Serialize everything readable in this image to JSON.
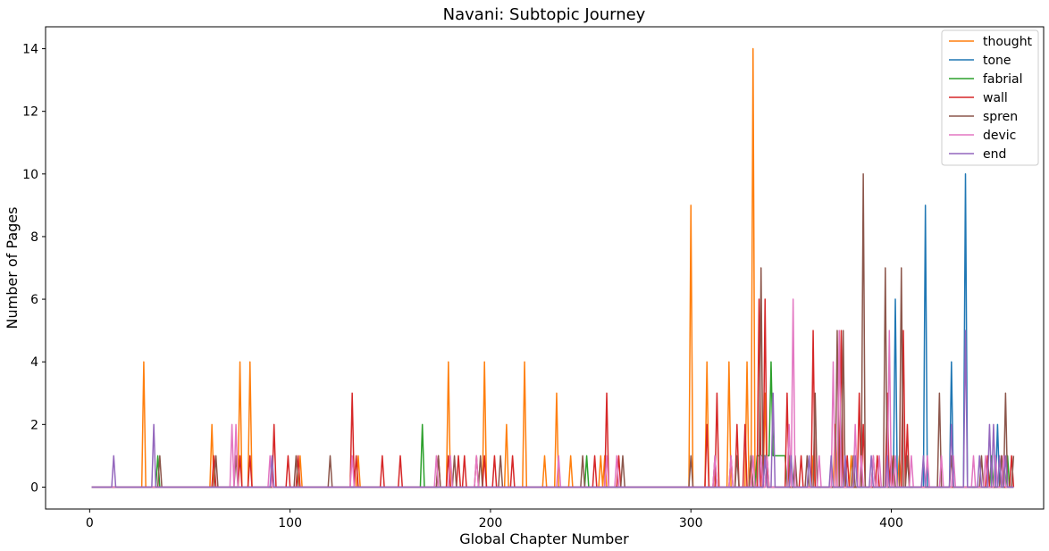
{
  "chart_data": {
    "type": "line",
    "title": "Navani: Subtopic Journey",
    "xlabel": "Global Chapter Number",
    "ylabel": "Number of Pages",
    "xlim": [
      -22,
      476
    ],
    "ylim": [
      -0.7,
      14.7
    ],
    "xticks": [
      0,
      100,
      200,
      300,
      400
    ],
    "yticks": [
      0,
      2,
      4,
      6,
      8,
      10,
      12,
      14
    ],
    "x_range": [
      1,
      461
    ],
    "grid": false,
    "legend_position": "top-right",
    "series": [
      {
        "name": "thought",
        "color": "#ff7f0e",
        "points": [
          [
            27,
            4
          ],
          [
            61,
            2
          ],
          [
            75,
            4
          ],
          [
            80,
            4
          ],
          [
            105,
            1
          ],
          [
            134,
            1
          ],
          [
            179,
            4
          ],
          [
            197,
            4
          ],
          [
            208,
            2
          ],
          [
            217,
            4
          ],
          [
            227,
            1
          ],
          [
            233,
            3
          ],
          [
            240,
            1
          ],
          [
            255,
            1
          ],
          [
            257,
            1
          ],
          [
            300,
            9
          ],
          [
            308,
            4
          ],
          [
            319,
            4
          ],
          [
            328,
            4
          ],
          [
            331,
            14
          ],
          [
            337,
            3
          ],
          [
            361,
            1
          ],
          [
            372,
            2
          ],
          [
            380,
            1
          ],
          [
            398,
            2
          ],
          [
            404,
            1
          ]
        ]
      },
      {
        "name": "tone",
        "color": "#1f77b4",
        "points": [
          [
            337,
            1
          ],
          [
            402,
            6
          ],
          [
            417,
            9
          ],
          [
            430,
            4
          ],
          [
            437,
            10
          ],
          [
            453,
            2
          ]
        ]
      },
      {
        "name": "fabrial",
        "color": "#2ca02c",
        "points": [
          [
            34,
            1
          ],
          [
            166,
            2
          ],
          [
            248,
            1
          ],
          [
            333,
            1
          ],
          [
            334,
            1
          ],
          [
            335,
            1
          ],
          [
            336,
            1
          ],
          [
            337,
            1
          ],
          [
            338,
            1
          ],
          [
            339,
            1
          ],
          [
            340,
            4
          ],
          [
            341,
            1
          ],
          [
            342,
            1
          ],
          [
            343,
            1
          ],
          [
            344,
            1
          ],
          [
            345,
            1
          ],
          [
            346,
            1
          ],
          [
            347,
            1
          ],
          [
            349,
            1
          ],
          [
            450,
            1
          ],
          [
            458,
            1
          ]
        ]
      },
      {
        "name": "wall",
        "color": "#d62728",
        "points": [
          [
            62,
            1
          ],
          [
            75,
            1
          ],
          [
            80,
            1
          ],
          [
            92,
            2
          ],
          [
            99,
            1
          ],
          [
            104,
            1
          ],
          [
            131,
            3
          ],
          [
            133,
            1
          ],
          [
            146,
            1
          ],
          [
            155,
            1
          ],
          [
            174,
            1
          ],
          [
            179,
            1
          ],
          [
            184,
            1
          ],
          [
            187,
            1
          ],
          [
            193,
            1
          ],
          [
            197,
            1
          ],
          [
            202,
            1
          ],
          [
            211,
            1
          ],
          [
            252,
            1
          ],
          [
            258,
            3
          ],
          [
            264,
            1
          ],
          [
            308,
            2
          ],
          [
            313,
            3
          ],
          [
            320,
            1
          ],
          [
            323,
            2
          ],
          [
            327,
            2
          ],
          [
            330,
            1
          ],
          [
            334,
            6
          ],
          [
            337,
            6
          ],
          [
            348,
            3
          ],
          [
            355,
            1
          ],
          [
            361,
            5
          ],
          [
            375,
            5
          ],
          [
            378,
            1
          ],
          [
            384,
            3
          ],
          [
            386,
            2
          ],
          [
            393,
            1
          ],
          [
            398,
            3
          ],
          [
            400,
            1
          ],
          [
            406,
            5
          ],
          [
            408,
            2
          ],
          [
            448,
            1
          ],
          [
            455,
            1
          ],
          [
            460,
            1
          ]
        ]
      },
      {
        "name": "spren",
        "color": "#8c564b",
        "points": [
          [
            35,
            1
          ],
          [
            63,
            1
          ],
          [
            73,
            1
          ],
          [
            103,
            1
          ],
          [
            120,
            1
          ],
          [
            174,
            1
          ],
          [
            182,
            1
          ],
          [
            195,
            1
          ],
          [
            205,
            1
          ],
          [
            246,
            1
          ],
          [
            266,
            1
          ],
          [
            300,
            1
          ],
          [
            312,
            1
          ],
          [
            323,
            1
          ],
          [
            330,
            1
          ],
          [
            335,
            7
          ],
          [
            338,
            1
          ],
          [
            352,
            1
          ],
          [
            358,
            1
          ],
          [
            362,
            3
          ],
          [
            373,
            5
          ],
          [
            376,
            5
          ],
          [
            381,
            1
          ],
          [
            386,
            10
          ],
          [
            391,
            1
          ],
          [
            397,
            7
          ],
          [
            401,
            1
          ],
          [
            405,
            7
          ],
          [
            408,
            1
          ],
          [
            424,
            3
          ],
          [
            430,
            1
          ],
          [
            445,
            1
          ],
          [
            455,
            1
          ],
          [
            457,
            3
          ],
          [
            461,
            1
          ]
        ]
      },
      {
        "name": "devic",
        "color": "#e377c2",
        "points": [
          [
            71,
            2
          ],
          [
            73,
            2
          ],
          [
            90,
            1
          ],
          [
            131,
            1
          ],
          [
            173,
            1
          ],
          [
            180,
            1
          ],
          [
            193,
            1
          ],
          [
            234,
            1
          ],
          [
            258,
            1
          ],
          [
            263,
            1
          ],
          [
            312,
            1
          ],
          [
            320,
            1
          ],
          [
            331,
            1
          ],
          [
            335,
            1
          ],
          [
            338,
            1
          ],
          [
            349,
            2
          ],
          [
            351,
            6
          ],
          [
            364,
            1
          ],
          [
            371,
            4
          ],
          [
            374,
            5
          ],
          [
            382,
            2
          ],
          [
            385,
            1
          ],
          [
            391,
            1
          ],
          [
            394,
            1
          ],
          [
            399,
            5
          ],
          [
            402,
            1
          ],
          [
            410,
            1
          ],
          [
            418,
            1
          ],
          [
            425,
            1
          ],
          [
            431,
            1
          ],
          [
            441,
            1
          ],
          [
            447,
            1
          ],
          [
            452,
            1
          ],
          [
            456,
            1
          ]
        ]
      },
      {
        "name": "end",
        "color": "#9467bd",
        "points": [
          [
            12,
            1
          ],
          [
            32,
            2
          ],
          [
            91,
            1
          ],
          [
            337,
            1
          ],
          [
            341,
            3
          ],
          [
            350,
            1
          ],
          [
            359,
            1
          ],
          [
            370,
            1
          ],
          [
            377,
            1
          ],
          [
            382,
            1
          ],
          [
            390,
            1
          ],
          [
            398,
            1
          ],
          [
            416,
            1
          ],
          [
            430,
            2
          ],
          [
            437,
            5
          ],
          [
            444,
            1
          ],
          [
            449,
            2
          ],
          [
            451,
            2
          ],
          [
            454,
            1
          ],
          [
            457,
            1
          ]
        ]
      }
    ]
  }
}
